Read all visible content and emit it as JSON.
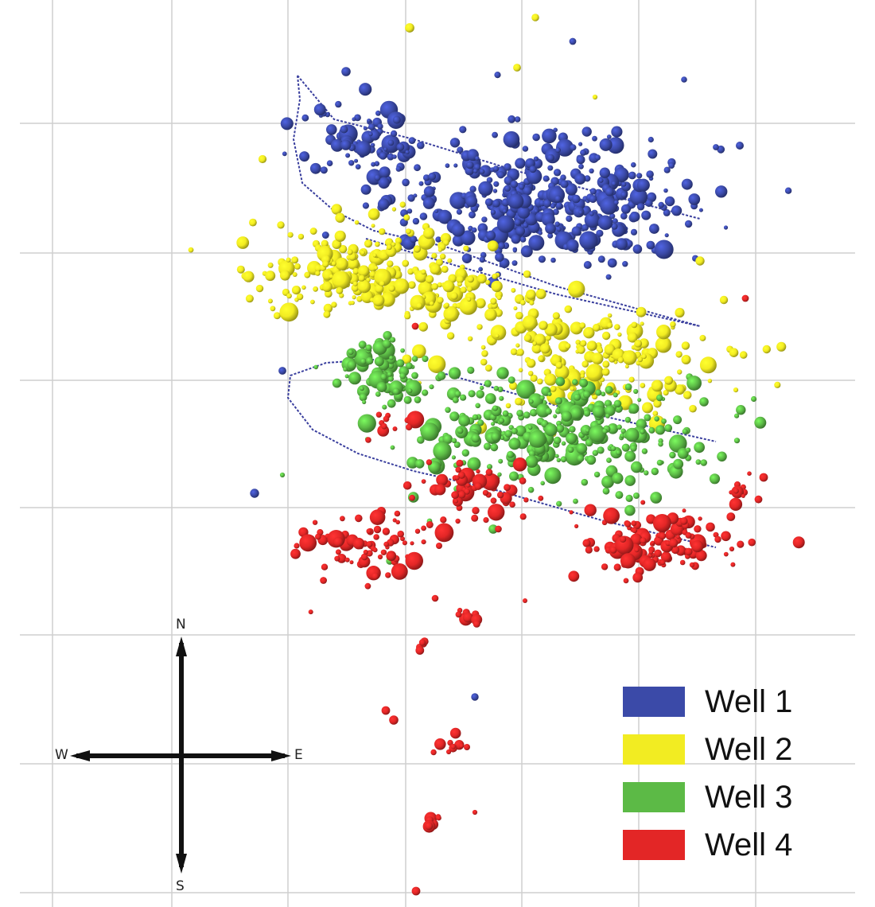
{
  "chart_data": {
    "type": "scatter",
    "title": "",
    "xlabel": "",
    "ylabel": "",
    "grid": true,
    "legend_position": "bottom-right",
    "series": [
      {
        "name": "Well 1",
        "color": "#3b4aa8",
        "clusters": [
          {
            "cx": 680,
            "cy": 255,
            "rx": 190,
            "ry": 80,
            "n": 420
          },
          {
            "cx": 460,
            "cy": 185,
            "rx": 80,
            "ry": 50,
            "n": 80
          }
        ],
        "extras": [
          [
            720,
            52
          ],
          [
            860,
            100
          ],
          [
            900,
            185
          ],
          [
            930,
            183
          ],
          [
            435,
            90
          ],
          [
            320,
            620
          ],
          [
            355,
            466
          ],
          [
            597,
            876
          ]
        ],
        "track": [
          [
            374,
            95
          ],
          [
            377,
            125
          ],
          [
            369,
            175
          ],
          [
            380,
            230
          ],
          [
            420,
            265
          ],
          [
            470,
            290
          ],
          [
            560,
            310
          ],
          [
            700,
            360
          ],
          [
            880,
            410
          ]
        ],
        "track2": [
          [
            374,
            95
          ],
          [
            420,
            150
          ],
          [
            520,
            175
          ],
          [
            650,
            215
          ],
          [
            880,
            275
          ]
        ]
      },
      {
        "name": "Well 2",
        "color": "#f2ec22",
        "clusters": [
          {
            "cx": 460,
            "cy": 335,
            "rx": 140,
            "ry": 55,
            "n": 220
          },
          {
            "cx": 730,
            "cy": 450,
            "rx": 170,
            "ry": 70,
            "n": 200
          },
          {
            "cx": 600,
            "cy": 380,
            "rx": 90,
            "ry": 40,
            "n": 60
          }
        ],
        "extras": [
          [
            515,
            35
          ],
          [
            673,
            22
          ],
          [
            748,
            122
          ],
          [
            650,
            85
          ],
          [
            880,
            328
          ],
          [
            910,
            377
          ],
          [
            330,
            200
          ]
        ],
        "track": [
          [
            460,
            300
          ],
          [
            560,
            330
          ],
          [
            700,
            370
          ],
          [
            880,
            410
          ]
        ]
      },
      {
        "name": "Well 3",
        "color": "#5cba46",
        "clusters": [
          {
            "cx": 700,
            "cy": 545,
            "rx": 180,
            "ry": 65,
            "n": 330
          },
          {
            "cx": 490,
            "cy": 470,
            "rx": 70,
            "ry": 45,
            "n": 80
          }
        ],
        "extras": [
          [
            355,
            597
          ],
          [
            540,
            655
          ],
          [
            620,
            665
          ],
          [
            885,
            505
          ],
          [
            490,
            705
          ]
        ],
        "track": [
          [
            560,
            470
          ],
          [
            700,
            510
          ],
          [
            900,
            555
          ]
        ]
      },
      {
        "name": "Well 4",
        "color": "#e32626",
        "clusters": [
          {
            "cx": 460,
            "cy": 680,
            "rx": 70,
            "ry": 50,
            "n": 75
          },
          {
            "cx": 825,
            "cy": 680,
            "rx": 100,
            "ry": 42,
            "n": 120
          },
          {
            "cx": 600,
            "cy": 620,
            "rx": 80,
            "ry": 40,
            "n": 55
          },
          {
            "cx": 490,
            "cy": 530,
            "rx": 25,
            "ry": 20,
            "n": 10
          },
          {
            "cx": 590,
            "cy": 780,
            "rx": 15,
            "ry": 15,
            "n": 10
          },
          {
            "cx": 530,
            "cy": 811,
            "rx": 10,
            "ry": 8,
            "n": 5
          },
          {
            "cx": 570,
            "cy": 935,
            "rx": 25,
            "ry": 15,
            "n": 12
          },
          {
            "cx": 543,
            "cy": 1035,
            "rx": 12,
            "ry": 15,
            "n": 8
          },
          {
            "cx": 935,
            "cy": 618,
            "rx": 22,
            "ry": 15,
            "n": 10
          }
        ],
        "extras": [
          [
            463,
            553
          ],
          [
            547,
            752
          ],
          [
            485,
            893
          ],
          [
            495,
            905
          ],
          [
            597,
            1021
          ],
          [
            523,
            1120
          ],
          [
            960,
            600
          ],
          [
            373,
            686
          ],
          [
            552,
            686
          ],
          [
            660,
            755
          ],
          [
            920,
            690
          ],
          [
            870,
            710
          ],
          [
            522,
            410
          ],
          [
            937,
            375
          ],
          [
            478,
            700
          ]
        ],
        "track": [
          [
            400,
            540
          ],
          [
            480,
            580
          ],
          [
            560,
            600
          ],
          [
            650,
            625
          ],
          [
            780,
            660
          ],
          [
            900,
            688
          ]
        ]
      }
    ],
    "track_loop": [
      [
        470,
        452
      ],
      [
        410,
        456
      ],
      [
        365,
        472
      ],
      [
        362,
        500
      ],
      [
        393,
        540
      ],
      [
        450,
        570
      ],
      [
        520,
        592
      ],
      [
        620,
        615
      ],
      [
        760,
        655
      ],
      [
        900,
        688
      ]
    ]
  },
  "compass": {
    "n": "N",
    "s": "S",
    "w": "W",
    "e": "E"
  },
  "legend": [
    {
      "label": "Well 1",
      "color": "#3b4aa8"
    },
    {
      "label": "Well 2",
      "color": "#f2ec22"
    },
    {
      "label": "Well 3",
      "color": "#5cba46"
    },
    {
      "label": "Well 4",
      "color": "#e32626"
    }
  ]
}
